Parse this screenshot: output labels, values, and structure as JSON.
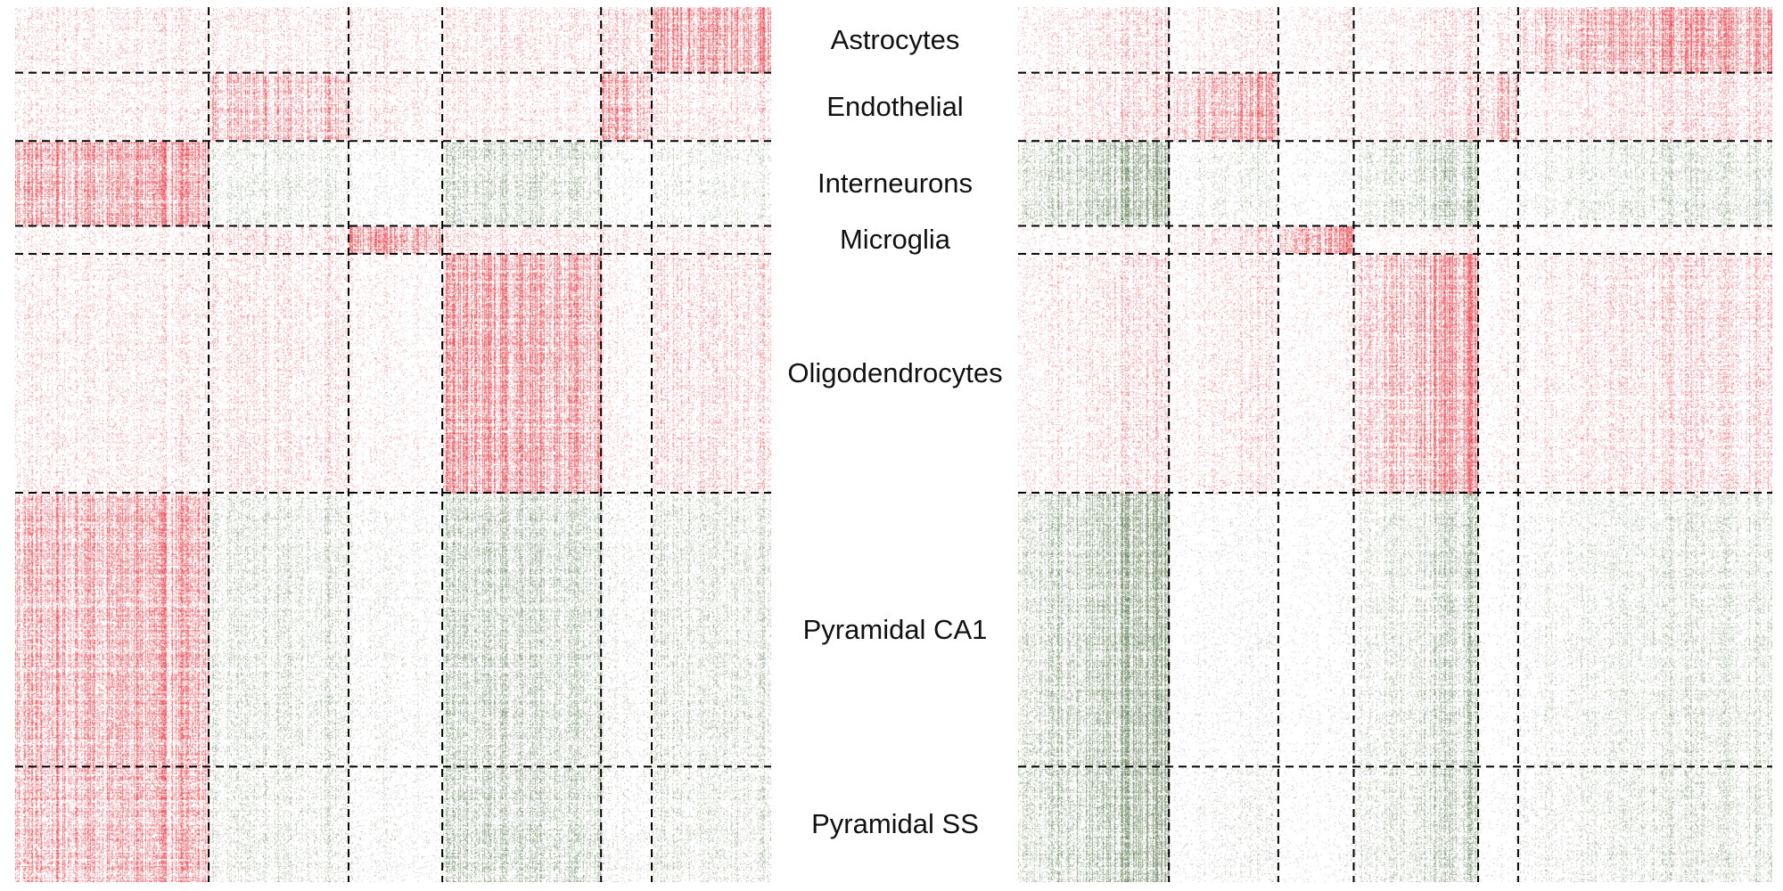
{
  "chart_data": [
    {
      "type": "heatmap",
      "panel": "left",
      "title": "",
      "xlabel": "",
      "ylabel": "",
      "colors": {
        "positive": "#e8323c",
        "negative": "#5d7a4f",
        "background": "#ffffff",
        "divider": "#000000"
      },
      "row_clusters": [
        {
          "label": "Astrocytes",
          "fraction": 0.075
        },
        {
          "label": "Endothelial",
          "fraction": 0.078
        },
        {
          "label": "Interneurons",
          "fraction": 0.097
        },
        {
          "label": "Microglia",
          "fraction": 0.032
        },
        {
          "label": "Oligodendrocytes",
          "fraction": 0.273
        },
        {
          "label": "Pyramidal CA1",
          "fraction": 0.313
        },
        {
          "label": "Pyramidal SS",
          "fraction": 0.132
        }
      ],
      "column_clusters": [
        {
          "fraction": 0.256
        },
        {
          "fraction": 0.185
        },
        {
          "fraction": 0.124
        },
        {
          "fraction": 0.21
        },
        {
          "fraction": 0.067
        },
        {
          "fraction": 0.158
        }
      ],
      "block_intensity": [
        [
          0.2,
          0.22,
          0.18,
          0.22,
          0.3,
          0.8
        ],
        [
          0.2,
          0.55,
          0.2,
          0.2,
          0.6,
          0.25
        ],
        [
          0.75,
          -0.25,
          -0.1,
          -0.4,
          -0.1,
          -0.2
        ],
        [
          0.15,
          0.3,
          0.8,
          0.25,
          0.2,
          0.2
        ],
        [
          0.2,
          0.25,
          0.12,
          0.75,
          0.12,
          0.3
        ],
        [
          0.65,
          -0.3,
          -0.12,
          -0.45,
          -0.12,
          -0.3
        ],
        [
          0.6,
          -0.25,
          -0.1,
          -0.45,
          -0.12,
          -0.25
        ]
      ]
    },
    {
      "type": "heatmap",
      "panel": "right",
      "title": "",
      "xlabel": "",
      "ylabel": "",
      "colors": {
        "positive": "#e8323c",
        "negative": "#5d7a4f",
        "background": "#ffffff",
        "divider": "#000000"
      },
      "row_clusters": [
        {
          "label": "Astrocytes",
          "fraction": 0.075
        },
        {
          "label": "Endothelial",
          "fraction": 0.078
        },
        {
          "label": "Interneurons",
          "fraction": 0.097
        },
        {
          "label": "Microglia",
          "fraction": 0.032
        },
        {
          "label": "Oligodendrocytes",
          "fraction": 0.273
        },
        {
          "label": "Pyramidal CA1",
          "fraction": 0.313
        },
        {
          "label": "Pyramidal SS",
          "fraction": 0.132
        }
      ],
      "column_clusters": [
        {
          "fraction": 0.2
        },
        {
          "fraction": 0.145
        },
        {
          "fraction": 0.1
        },
        {
          "fraction": 0.165
        },
        {
          "fraction": 0.053
        },
        {
          "fraction": 0.337
        }
      ],
      "block_intensity": [
        [
          0.3,
          0.2,
          0.15,
          0.25,
          0.2,
          0.85
        ],
        [
          0.35,
          0.8,
          0.15,
          0.35,
          0.6,
          0.35
        ],
        [
          -0.75,
          -0.2,
          -0.08,
          -0.5,
          -0.08,
          -0.35
        ],
        [
          0.15,
          0.35,
          0.8,
          0.2,
          0.15,
          0.15
        ],
        [
          0.3,
          0.25,
          0.1,
          0.85,
          0.15,
          0.35
        ],
        [
          -0.8,
          -0.1,
          -0.06,
          -0.45,
          -0.06,
          -0.3
        ],
        [
          -0.75,
          -0.15,
          -0.06,
          -0.45,
          -0.06,
          -0.3
        ]
      ]
    }
  ]
}
